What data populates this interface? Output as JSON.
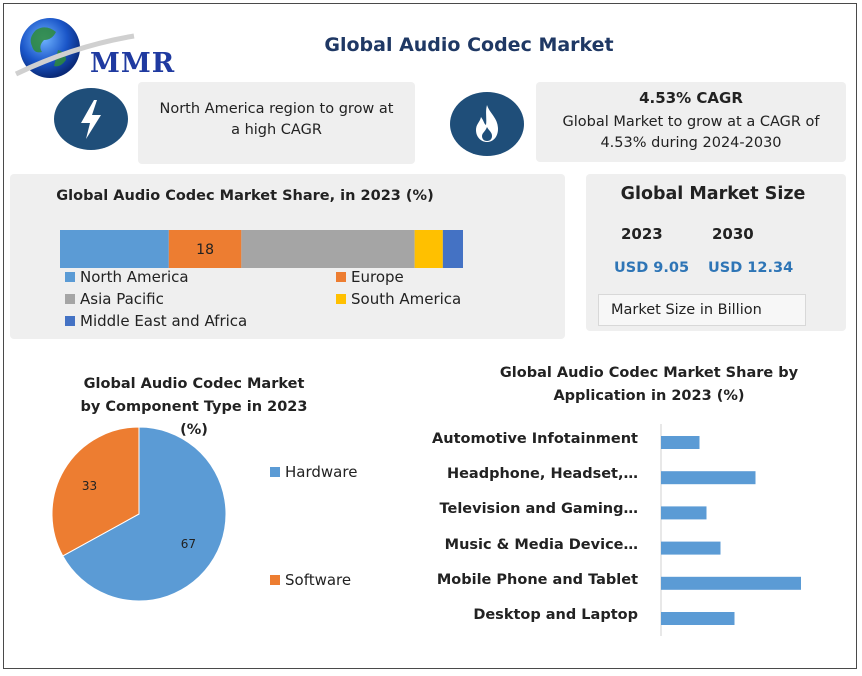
{
  "header": {
    "logo_text": "MMR",
    "title": "Global Audio Codec Market"
  },
  "callouts": [
    {
      "icon": "lightning-icon",
      "text": "North America region to grow at a high CAGR"
    },
    {
      "icon": "flame-icon",
      "heading": "4.53% CAGR",
      "text": "Global Market to grow at a CAGR of 4.53% during 2024-2030"
    }
  ],
  "market_size": {
    "title": "Global Market Size",
    "years": [
      "2023",
      "2030"
    ],
    "values": [
      "USD 9.05",
      "USD 12.34"
    ],
    "unit_note": "Market Size in Billion"
  },
  "colors": {
    "blue": "#5b9bd5",
    "orange": "#ed7d31",
    "gray": "#a5a5a5",
    "yellow": "#ffc000",
    "darkblue": "#4472c4",
    "navy": "#1f4e79",
    "title_blue": "#1f3864",
    "value_blue": "#2e75b6"
  },
  "chart_data": [
    {
      "type": "bar",
      "orientation": "horizontal-stacked",
      "title": "Global Audio Codec Market Share, in 2023 (%)",
      "series": [
        {
          "name": "North America",
          "value": 27
        },
        {
          "name": "Europe",
          "value": 18,
          "label": "18"
        },
        {
          "name": "Asia Pacific",
          "value": 43
        },
        {
          "name": "South America",
          "value": 7
        },
        {
          "name": "Middle East and Africa",
          "value": 5
        }
      ],
      "legend": "bottom"
    },
    {
      "type": "pie",
      "title": "Global Audio Codec Market by Component Type in 2023 (%)",
      "slices": [
        {
          "name": "Hardware",
          "value": 67,
          "label": "67"
        },
        {
          "name": "Software",
          "value": 33,
          "label": "33"
        }
      ],
      "legend": "right"
    },
    {
      "type": "bar",
      "orientation": "horizontal",
      "title": "Global Audio Codec Market Share by Application in 2023 (%)",
      "categories": [
        "Automotive Infotainment",
        "Headphone, Headset,…",
        "Television and Gaming…",
        "Music & Media Device…",
        "Mobile Phone and Tablet",
        "Desktop and Laptop"
      ],
      "values": [
        11,
        27,
        13,
        17,
        40,
        21
      ]
    }
  ]
}
